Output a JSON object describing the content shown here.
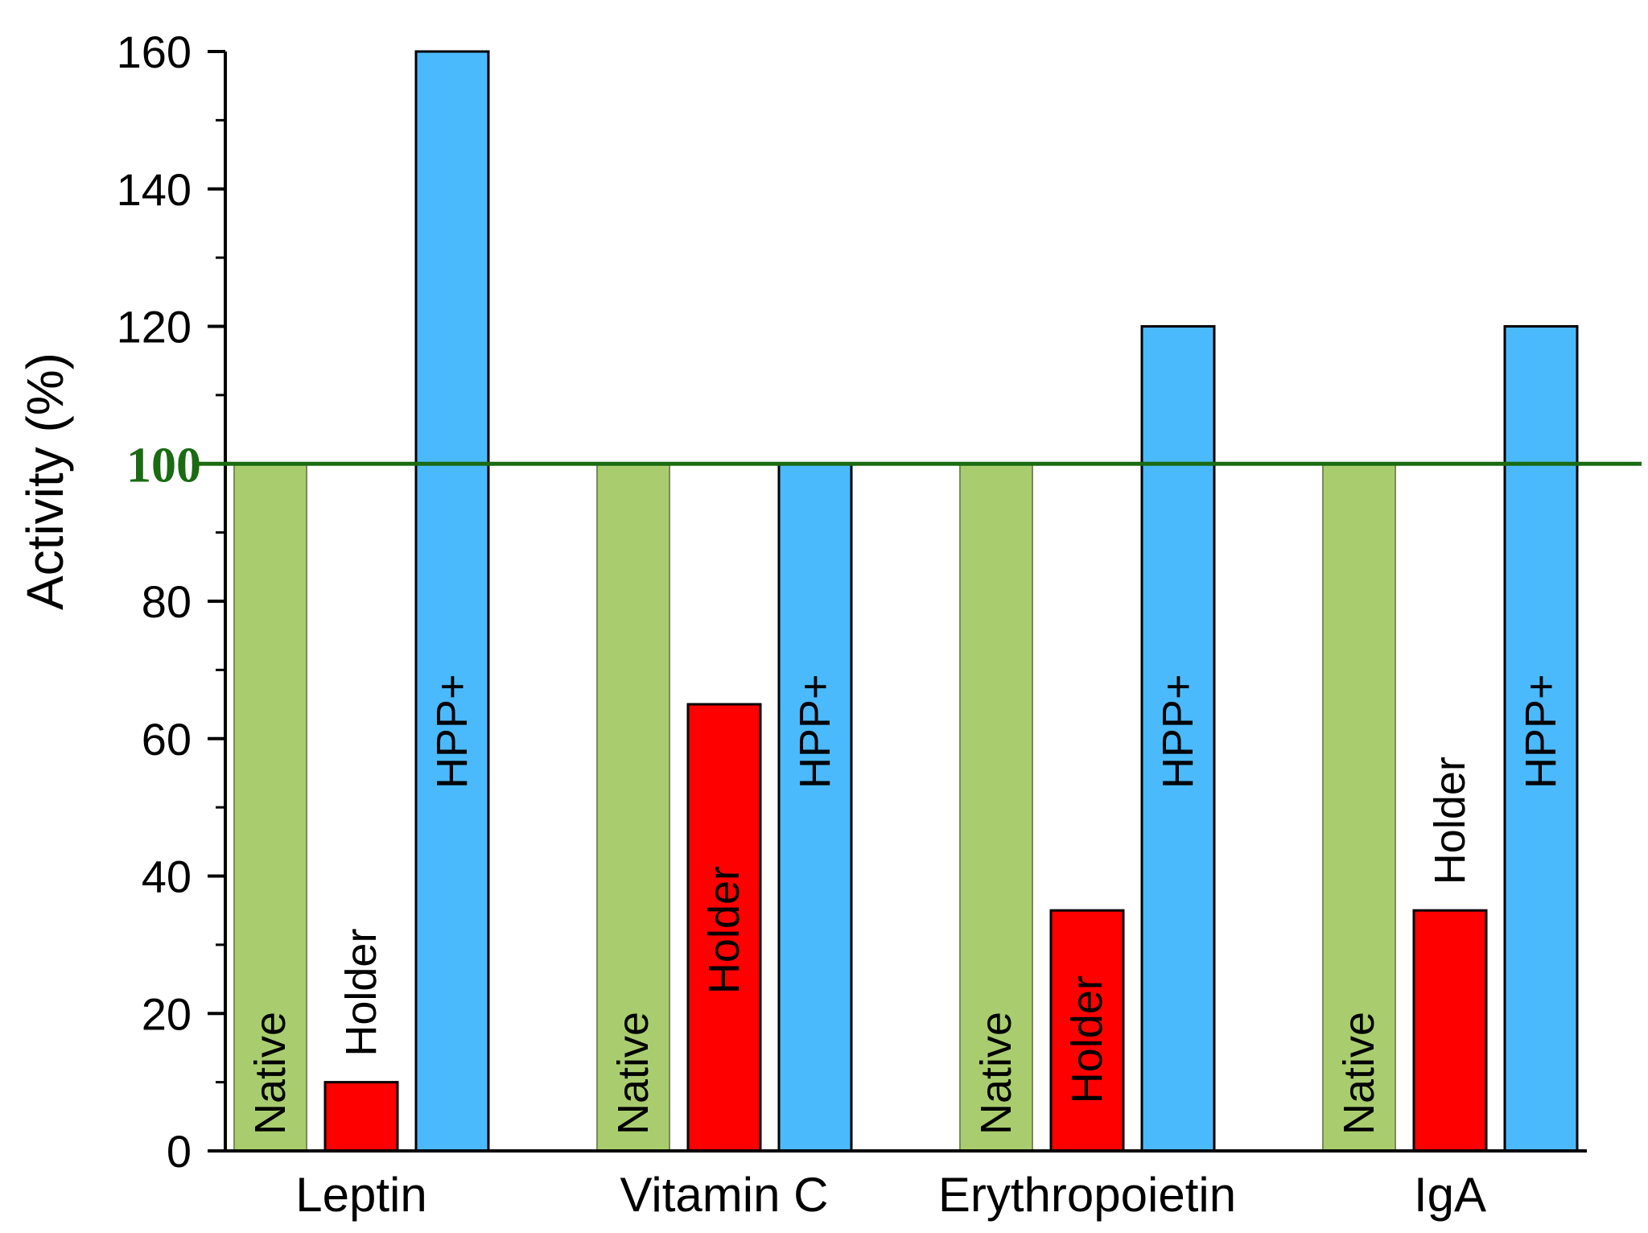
{
  "chart_data": {
    "type": "bar",
    "title": "",
    "xlabel": "",
    "ylabel": "Activity (%)",
    "ylim": [
      0,
      160
    ],
    "yticks": [
      0,
      20,
      40,
      60,
      80,
      100,
      120,
      140,
      160
    ],
    "categories": [
      "Leptin",
      "Vitamin C",
      "Erythropoietin",
      "IgA"
    ],
    "series": [
      {
        "name": "Native",
        "color": "#a9cd6e",
        "values": [
          100,
          100,
          100,
          100
        ]
      },
      {
        "name": "Holder",
        "color": "#ff0000",
        "values": [
          10,
          65,
          35,
          35
        ]
      },
      {
        "name": "HPP+",
        "color": "#4bbafc",
        "values": [
          160,
          100,
          120,
          120
        ]
      }
    ],
    "reference_line": {
      "value": 100,
      "label": "100",
      "color": "#1a6b12"
    }
  }
}
